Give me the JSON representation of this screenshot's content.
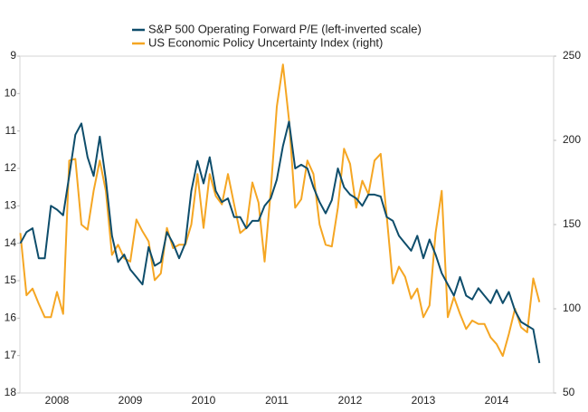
{
  "chart_data": {
    "type": "line",
    "categories": [
      null,
      null,
      null,
      null,
      null,
      null,
      "2008",
      null,
      null,
      null,
      null,
      null,
      null,
      null,
      null,
      null,
      null,
      null,
      "2009",
      null,
      null,
      null,
      null,
      null,
      null,
      null,
      null,
      null,
      null,
      null,
      "2010",
      null,
      null,
      null,
      null,
      null,
      null,
      null,
      null,
      null,
      null,
      null,
      "2011",
      null,
      null,
      null,
      null,
      null,
      null,
      null,
      null,
      null,
      null,
      null,
      "2012",
      null,
      null,
      null,
      null,
      null,
      null,
      null,
      null,
      null,
      null,
      null,
      "2013",
      null,
      null,
      null,
      null,
      null,
      null,
      null,
      null,
      null,
      null,
      null,
      "2014",
      null,
      null,
      null,
      null,
      null,
      null,
      null
    ],
    "ylim": [
      9,
      18
    ],
    "y_inverted": true,
    "yticks": [
      9,
      10,
      11,
      12,
      13,
      14,
      15,
      16,
      17,
      18
    ],
    "y2lim": [
      50,
      250
    ],
    "y2ticks": [
      50,
      100,
      150,
      200,
      250
    ],
    "series": [
      {
        "name": "S&P 500 Operating Forward P/E (left-inverted scale)",
        "color": "#0e4d6b",
        "values": [
          14.0,
          13.7,
          13.6,
          14.4,
          14.4,
          13.0,
          13.1,
          13.25,
          12.2,
          11.1,
          10.8,
          11.7,
          12.2,
          11.15,
          12.3,
          13.8,
          14.5,
          14.3,
          14.7,
          14.9,
          15.1,
          14.1,
          14.6,
          14.5,
          13.7,
          14.0,
          14.4,
          14.0,
          12.6,
          11.8,
          12.4,
          11.7,
          12.6,
          12.9,
          12.8,
          13.3,
          13.3,
          13.6,
          13.4,
          13.4,
          13.0,
          12.8,
          12.3,
          11.4,
          10.75,
          12.0,
          11.9,
          12.0,
          12.5,
          12.9,
          13.2,
          12.85,
          12.0,
          12.5,
          12.7,
          12.8,
          13.0,
          12.7,
          12.7,
          12.75,
          13.3,
          13.4,
          13.8,
          14.0,
          14.2,
          13.8,
          14.4,
          13.9,
          14.3,
          14.8,
          15.1,
          15.4,
          14.9,
          15.4,
          15.5,
          15.2,
          15.4,
          15.6,
          15.25,
          15.6,
          15.3,
          15.8,
          16.1,
          16.2,
          16.3,
          17.2
        ]
      },
      {
        "name": "US Economic Policy Uncertainty Index (right)",
        "color": "#f5a623",
        "axis": "y2",
        "values": [
          145,
          108,
          112,
          103,
          95,
          95,
          110,
          97,
          188,
          189,
          150,
          147,
          170,
          188,
          170,
          132,
          138,
          130,
          128,
          153,
          146,
          140,
          117,
          121,
          148,
          136,
          138,
          138,
          150,
          180,
          148,
          180,
          167,
          162,
          180,
          162,
          145,
          148,
          175,
          163,
          128,
          170,
          220,
          245,
          212,
          160,
          165,
          188,
          180,
          150,
          138,
          137,
          160,
          195,
          186,
          160,
          176,
          168,
          188,
          192,
          155,
          115,
          125,
          119,
          106,
          112,
          95,
          102,
          145,
          170,
          95,
          107,
          97,
          88,
          93,
          91,
          91,
          83,
          79,
          72,
          85,
          100,
          89,
          86,
          118,
          104
        ]
      }
    ]
  }
}
